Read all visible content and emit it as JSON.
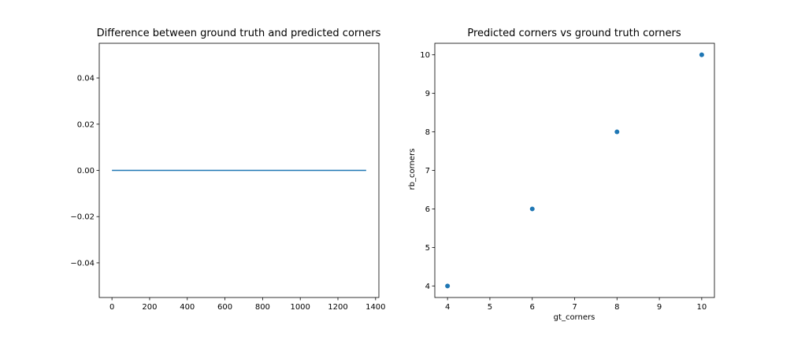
{
  "chart_data": [
    {
      "type": "line",
      "title": "Difference between ground truth and predicted corners",
      "xlabel": "",
      "ylabel": "",
      "xlim": [
        -67.5,
        1417.5
      ],
      "ylim": [
        -0.055,
        0.055
      ],
      "xticks": [
        0,
        200,
        400,
        600,
        800,
        1000,
        1200,
        1400
      ],
      "yticks": [
        -0.04,
        -0.02,
        0.0,
        0.02,
        0.04
      ],
      "ytick_labels": [
        "−0.04",
        "−0.02",
        "0.00",
        "0.02",
        "0.04"
      ],
      "grid": false,
      "series": [
        {
          "x": [
            0,
            1350
          ],
          "y": [
            0,
            0
          ],
          "color": "#1f77b4"
        }
      ]
    },
    {
      "type": "scatter",
      "title": "Predicted corners vs ground truth corners",
      "xlabel": "gt_corners",
      "ylabel": "rb_corners",
      "xlim": [
        3.7,
        10.3
      ],
      "ylim": [
        3.7,
        10.3
      ],
      "xticks": [
        4,
        5,
        6,
        7,
        8,
        9,
        10
      ],
      "yticks": [
        4,
        5,
        6,
        7,
        8,
        9,
        10
      ],
      "grid": false,
      "series": [
        {
          "x": [
            4,
            6,
            8,
            10
          ],
          "y": [
            4,
            6,
            8,
            10
          ],
          "color": "#1f77b4"
        }
      ]
    }
  ]
}
